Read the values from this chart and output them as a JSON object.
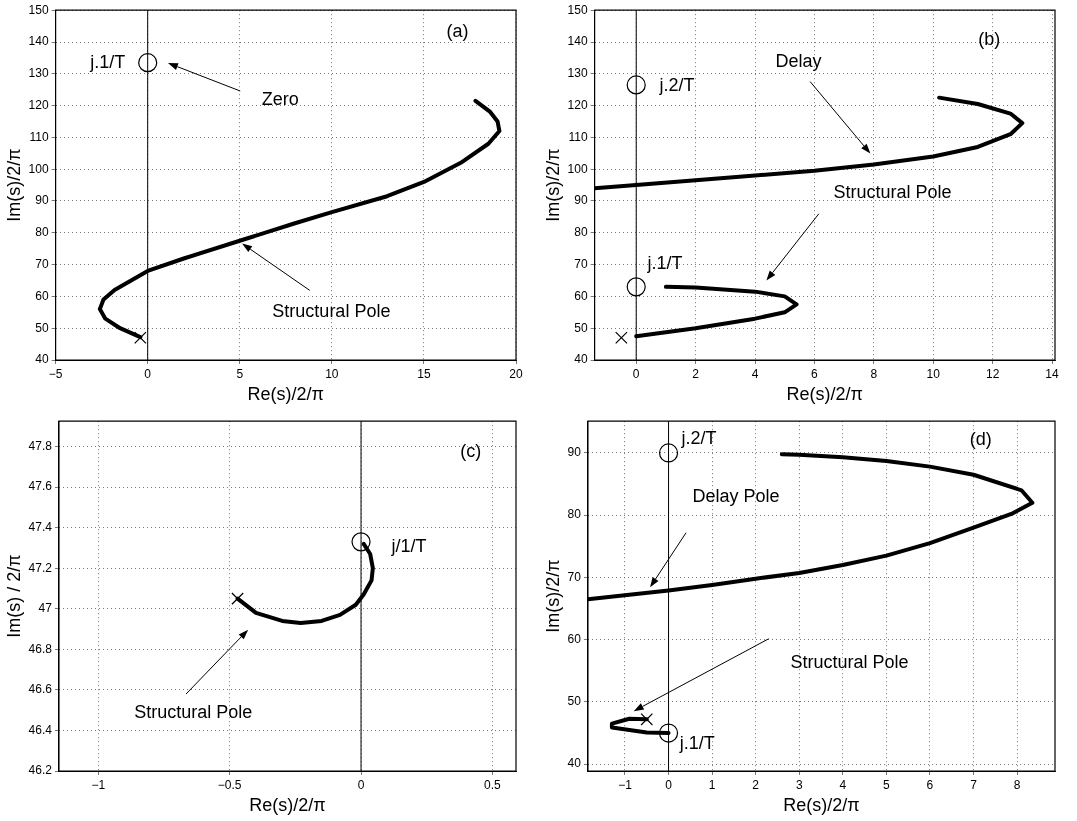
{
  "chart_data": [
    {
      "type": "line",
      "xlabel": "Re(s)/2/π",
      "ylabel": "Im(s)/2/π",
      "xlim": [
        -5,
        20
      ],
      "ylim": [
        40,
        150
      ],
      "xticks": [
        {
          "value": -5,
          "label": "−5"
        },
        0,
        5,
        10,
        15,
        20
      ],
      "yticks": [
        40,
        50,
        60,
        70,
        80,
        90,
        100,
        110,
        120,
        130,
        140,
        150
      ],
      "grid": true,
      "legend": false,
      "ref_lines": [
        {
          "axis": "x",
          "value": 0,
          "color": "#000000"
        }
      ],
      "series": [
        {
          "type": "line",
          "color": "#000000",
          "x": [
            -0.4,
            -1.5,
            -2.3,
            -2.6,
            -2.4,
            -1.8,
            -0.9,
            0,
            2,
            5,
            8,
            10,
            13,
            15,
            17,
            18.5,
            19.1,
            19,
            18.6,
            17.8
          ],
          "values": [
            47.2,
            50,
            53,
            56,
            59,
            62,
            65,
            68,
            72,
            77.5,
            83,
            86.5,
            91.5,
            96,
            102,
            108,
            112,
            115,
            118,
            121.5
          ]
        },
        {
          "type": "scatter",
          "marker": "circle",
          "color": "#000000",
          "x": [
            0
          ],
          "values": [
            133.5
          ]
        },
        {
          "type": "scatter",
          "marker": "cross",
          "color": "#000000",
          "x": [
            -0.4
          ],
          "values": [
            47
          ]
        }
      ],
      "annotations": [
        "(a)",
        "j.1/T",
        "Zero",
        "Structural Pole"
      ]
    },
    {
      "type": "line",
      "xlabel": "Re(s)/2/π",
      "ylabel": "Im(s)/2/π",
      "xlim": [
        -1.4,
        14.1
      ],
      "ylim": [
        40,
        150
      ],
      "xticks": [
        0,
        2,
        4,
        6,
        8,
        10,
        12,
        14
      ],
      "yticks": [
        40,
        50,
        60,
        70,
        80,
        90,
        100,
        110,
        120,
        130,
        140,
        150
      ],
      "grid": true,
      "legend": false,
      "ref_lines": [
        {
          "axis": "x",
          "value": 0,
          "color": "#000000"
        }
      ],
      "series": [
        {
          "type": "line",
          "color": "#000000",
          "x": [
            -1.4,
            0,
            2,
            4,
            6,
            8,
            10,
            11.5,
            12.6,
            13,
            12.6,
            11.5,
            10.2
          ],
          "values": [
            94,
            95,
            96.5,
            98,
            99.5,
            101.5,
            104,
            107,
            111,
            114.5,
            117.5,
            120.5,
            122.5
          ]
        },
        {
          "type": "line",
          "color": "#000000",
          "x": [
            0,
            2,
            4,
            5,
            5.4,
            5,
            4,
            2,
            1
          ],
          "values": [
            47.5,
            50,
            53,
            55,
            57.5,
            60,
            61.5,
            62.8,
            63
          ]
        },
        {
          "type": "scatter",
          "marker": "circle",
          "color": "#000000",
          "x": [
            0,
            0
          ],
          "values": [
            126.5,
            63
          ]
        },
        {
          "type": "scatter",
          "marker": "cross",
          "color": "#000000",
          "x": [
            -0.5
          ],
          "values": [
            47
          ]
        }
      ],
      "annotations": [
        "(b)",
        "j.2/T",
        "j.1/T",
        "Delay",
        "Structural Pole"
      ]
    },
    {
      "type": "line",
      "xlabel": "Re(s)/2/π",
      "ylabel": "Im(s) / 2/π",
      "xlim": [
        -1.15,
        0.59
      ],
      "ylim": [
        46.2,
        47.925
      ],
      "xticks": [
        {
          "value": -1,
          "label": "−1"
        },
        {
          "value": -0.5,
          "label": "−0.5"
        },
        0,
        0.5
      ],
      "yticks": [
        46.2,
        46.4,
        46.6,
        46.8,
        47,
        47.2,
        47.4,
        47.6,
        47.8
      ],
      "grid": true,
      "legend": false,
      "ref_lines": [
        {
          "axis": "x",
          "value": 0,
          "color": "#000000"
        }
      ],
      "series": [
        {
          "type": "line",
          "color": "#000000",
          "x": [
            -0.47,
            -0.4,
            -0.3,
            -0.23,
            -0.15,
            -0.08,
            -0.02,
            0.01,
            0.04,
            0.045,
            0.035,
            0.01
          ],
          "values": [
            47.05,
            46.98,
            46.94,
            46.93,
            46.94,
            46.97,
            47.02,
            47.07,
            47.14,
            47.2,
            47.27,
            47.32
          ]
        },
        {
          "type": "scatter",
          "marker": "circle",
          "color": "#000000",
          "x": [
            0
          ],
          "values": [
            47.33
          ]
        },
        {
          "type": "scatter",
          "marker": "cross",
          "color": "#000000",
          "x": [
            -0.47
          ],
          "values": [
            47.05
          ]
        }
      ],
      "annotations": [
        "(c)",
        "j/1/T",
        "Structural Pole"
      ]
    },
    {
      "type": "line",
      "xlabel": "Re(s)/2/π",
      "ylabel": "Im(s)/2/π",
      "xlim": [
        -1.85,
        8.87
      ],
      "ylim": [
        38.9,
        95.1
      ],
      "xticks": [
        {
          "value": -1,
          "label": "−1"
        },
        0,
        1,
        2,
        3,
        4,
        5,
        6,
        7,
        8
      ],
      "yticks": [
        40,
        50,
        60,
        70,
        80,
        90
      ],
      "grid": true,
      "legend": false,
      "ref_lines": [
        {
          "axis": "x",
          "value": 0,
          "color": "#000000"
        }
      ],
      "series": [
        {
          "type": "line",
          "color": "#000000",
          "x": [
            -1.85,
            0,
            1,
            2,
            3,
            4,
            5,
            6,
            7,
            7.9,
            8.35,
            8.1,
            7,
            6,
            5,
            4,
            3,
            2.6
          ],
          "values": [
            66.5,
            67.9,
            68.8,
            69.8,
            70.7,
            72,
            73.5,
            75.5,
            78,
            80.3,
            82,
            84,
            86.5,
            87.8,
            88.7,
            89.3,
            89.7,
            89.8
          ]
        },
        {
          "type": "line",
          "color": "#000000",
          "x": [
            -0.5,
            -0.9,
            -1.3,
            -1.3,
            -0.9,
            -0.5,
            0
          ],
          "values": [
            47.2,
            47.3,
            46.5,
            45.9,
            45.5,
            45.1,
            45
          ]
        },
        {
          "type": "scatter",
          "marker": "circle",
          "color": "#000000",
          "x": [
            0,
            0
          ],
          "values": [
            90,
            45
          ]
        },
        {
          "type": "scatter",
          "marker": "cross",
          "color": "#000000",
          "x": [
            -0.5
          ],
          "values": [
            47.2
          ]
        }
      ],
      "annotations": [
        "(d)",
        "j.2/T",
        "j.1/T",
        "Delay Pole",
        "Structural Pole"
      ]
    }
  ]
}
